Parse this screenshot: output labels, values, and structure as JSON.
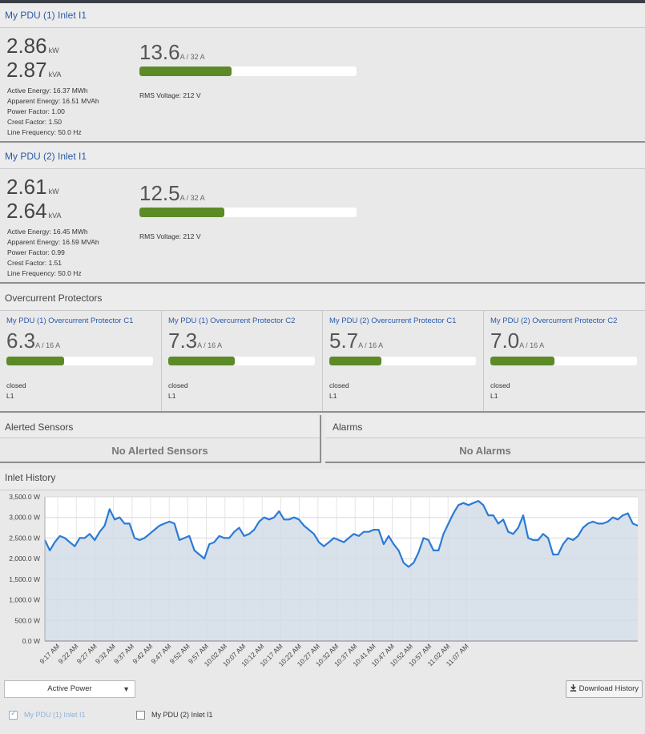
{
  "inlets": [
    {
      "title": "My PDU (1) Inlet I1",
      "kw": "2.86",
      "kw_unit": "kW",
      "kva": "2.87",
      "kva_unit": "kVA",
      "details": [
        "Active Energy: 16.37 MWh",
        "Apparent Energy: 16.51 MVAh",
        "Power Factor: 1.00",
        "Crest Factor: 1.50",
        "Line Frequency: 50.0 Hz"
      ],
      "current": "13.6",
      "current_unit": "A / 32 A",
      "current_fraction": 0.425,
      "voltage": "RMS Voltage: 212 V"
    },
    {
      "title": "My PDU (2) Inlet I1",
      "kw": "2.61",
      "kw_unit": "kW",
      "kva": "2.64",
      "kva_unit": "kVA",
      "details": [
        "Active Energy: 16.45 MWh",
        "Apparent Energy: 16.59 MVAh",
        "Power Factor: 0.99",
        "Crest Factor: 1.51",
        "Line Frequency: 50.0 Hz"
      ],
      "current": "12.5",
      "current_unit": "A / 32 A",
      "current_fraction": 0.39,
      "voltage": "RMS Voltage: 212 V"
    }
  ],
  "ocp_section": {
    "title": "Overcurrent Protectors",
    "items": [
      {
        "name": "My PDU (1) Overcurrent Protector C1",
        "value": "6.3",
        "unit": "A / 16 A",
        "fraction": 0.394,
        "state": "closed",
        "line": "L1"
      },
      {
        "name": "My PDU (1) Overcurrent Protector C2",
        "value": "7.3",
        "unit": "A / 16 A",
        "fraction": 0.456,
        "state": "closed",
        "line": "L1"
      },
      {
        "name": "My PDU (2) Overcurrent Protector C1",
        "value": "5.7",
        "unit": "A / 16 A",
        "fraction": 0.356,
        "state": "closed",
        "line": "L1"
      },
      {
        "name": "My PDU (2) Overcurrent Protector C2",
        "value": "7.0",
        "unit": "A / 16 A",
        "fraction": 0.438,
        "state": "closed",
        "line": "L1"
      }
    ]
  },
  "alerted_sensors": {
    "title": "Alerted Sensors",
    "empty": "No Alerted Sensors"
  },
  "alarms": {
    "title": "Alarms",
    "empty": "No Alarms"
  },
  "history": {
    "title": "Inlet History",
    "metric_select": "Active Power",
    "download_label": "Download History",
    "download_icon": "download-icon",
    "legend": [
      {
        "label": "My PDU (1) Inlet I1",
        "checked": true
      },
      {
        "label": "My PDU (2) Inlet I1",
        "checked": false
      }
    ]
  },
  "colors": {
    "accent": "#2a5aa8",
    "bar_fill": "#5b8a27",
    "line": "#2b7bd6",
    "area": "#cfdae6"
  },
  "chart_data": {
    "type": "area",
    "title": "",
    "xlabel": "",
    "ylabel": "",
    "ylim": [
      0,
      3500
    ],
    "y_ticks": [
      "0.0 W",
      "500.0 W",
      "1,000.0 W",
      "1,500.0 W",
      "2,000.0 W",
      "2,500.0 W",
      "3,000.0 W",
      "3,500.0 W"
    ],
    "x_ticks": [
      "9:17 AM",
      "9:22 AM",
      "9:27 AM",
      "9:32 AM",
      "9:37 AM",
      "9:42 AM",
      "9:47 AM",
      "9:52 AM",
      "9:57 AM",
      "10:02 AM",
      "10:07 AM",
      "10:12 AM",
      "10:17 AM",
      "10:22 AM",
      "10:27 AM",
      "10:32 AM",
      "10:37 AM",
      "10:41 AM",
      "10:47 AM",
      "10:52 AM",
      "10:57 AM",
      "11:02 AM",
      "11:07 AM"
    ],
    "grid": true,
    "series": [
      {
        "name": "My PDU (1) Inlet I1",
        "values": [
          2450,
          2200,
          2400,
          2550,
          2500,
          2400,
          2300,
          2500,
          2500,
          2600,
          2450,
          2650,
          2800,
          3200,
          2950,
          3000,
          2850,
          2850,
          2500,
          2450,
          2500,
          2600,
          2700,
          2800,
          2850,
          2900,
          2850,
          2450,
          2500,
          2550,
          2200,
          2100,
          2000,
          2350,
          2400,
          2550,
          2500,
          2500,
          2650,
          2750,
          2550,
          2600,
          2700,
          2900,
          3000,
          2950,
          3000,
          3150,
          2950,
          2950,
          3000,
          2950,
          2800,
          2700,
          2600,
          2400,
          2300,
          2400,
          2500,
          2450,
          2400,
          2500,
          2600,
          2550,
          2650,
          2650,
          2700,
          2700,
          2350,
          2550,
          2350,
          2200,
          1900,
          1800,
          1900,
          2150,
          2500,
          2450,
          2200,
          2200,
          2600,
          2850,
          3100,
          3300,
          3350,
          3300,
          3350,
          3400,
          3300,
          3050,
          3050,
          2850,
          2950,
          2650,
          2600,
          2750,
          3050,
          2500,
          2450,
          2450,
          2600,
          2500,
          2100,
          2100,
          2350,
          2500,
          2450,
          2550,
          2750,
          2850,
          2900,
          2850,
          2850,
          2900,
          3000,
          2950,
          3050,
          3100,
          2850,
          2800
        ]
      }
    ]
  }
}
